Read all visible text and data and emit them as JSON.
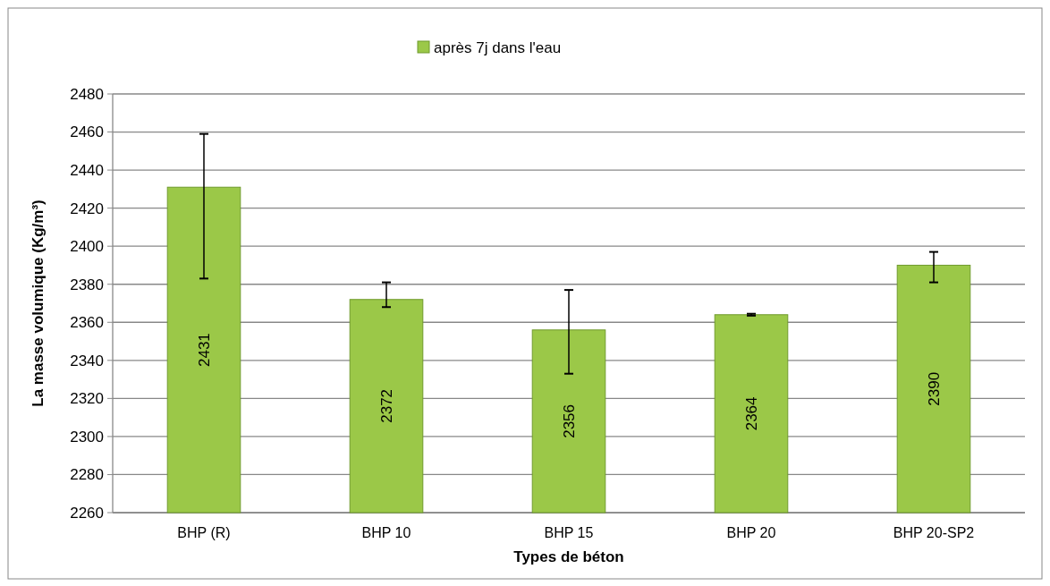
{
  "chart_data": {
    "type": "bar",
    "categories": [
      "BHP (R)",
      "BHP 10",
      "BHP 15",
      "BHP 20",
      "BHP 20-SP2"
    ],
    "series": [
      {
        "name": "après 7j dans l'eau",
        "color": "#9bc848",
        "values": [
          2431,
          2372,
          2356,
          2364,
          2390
        ],
        "errors": [
          [
            2383,
            2459
          ],
          [
            2368,
            2381
          ],
          [
            2333,
            2377
          ],
          0.5,
          [
            2381,
            2397
          ]
        ]
      }
    ],
    "xlabel": "Types de béton",
    "ylabel": "La masse volumique (Kg/m³)",
    "ylim": [
      2260,
      2480
    ],
    "yticks": [
      2260,
      2280,
      2300,
      2320,
      2340,
      2360,
      2380,
      2400,
      2420,
      2440,
      2460,
      2480
    ],
    "grid": "y",
    "legend": "top",
    "data_labels": true
  }
}
